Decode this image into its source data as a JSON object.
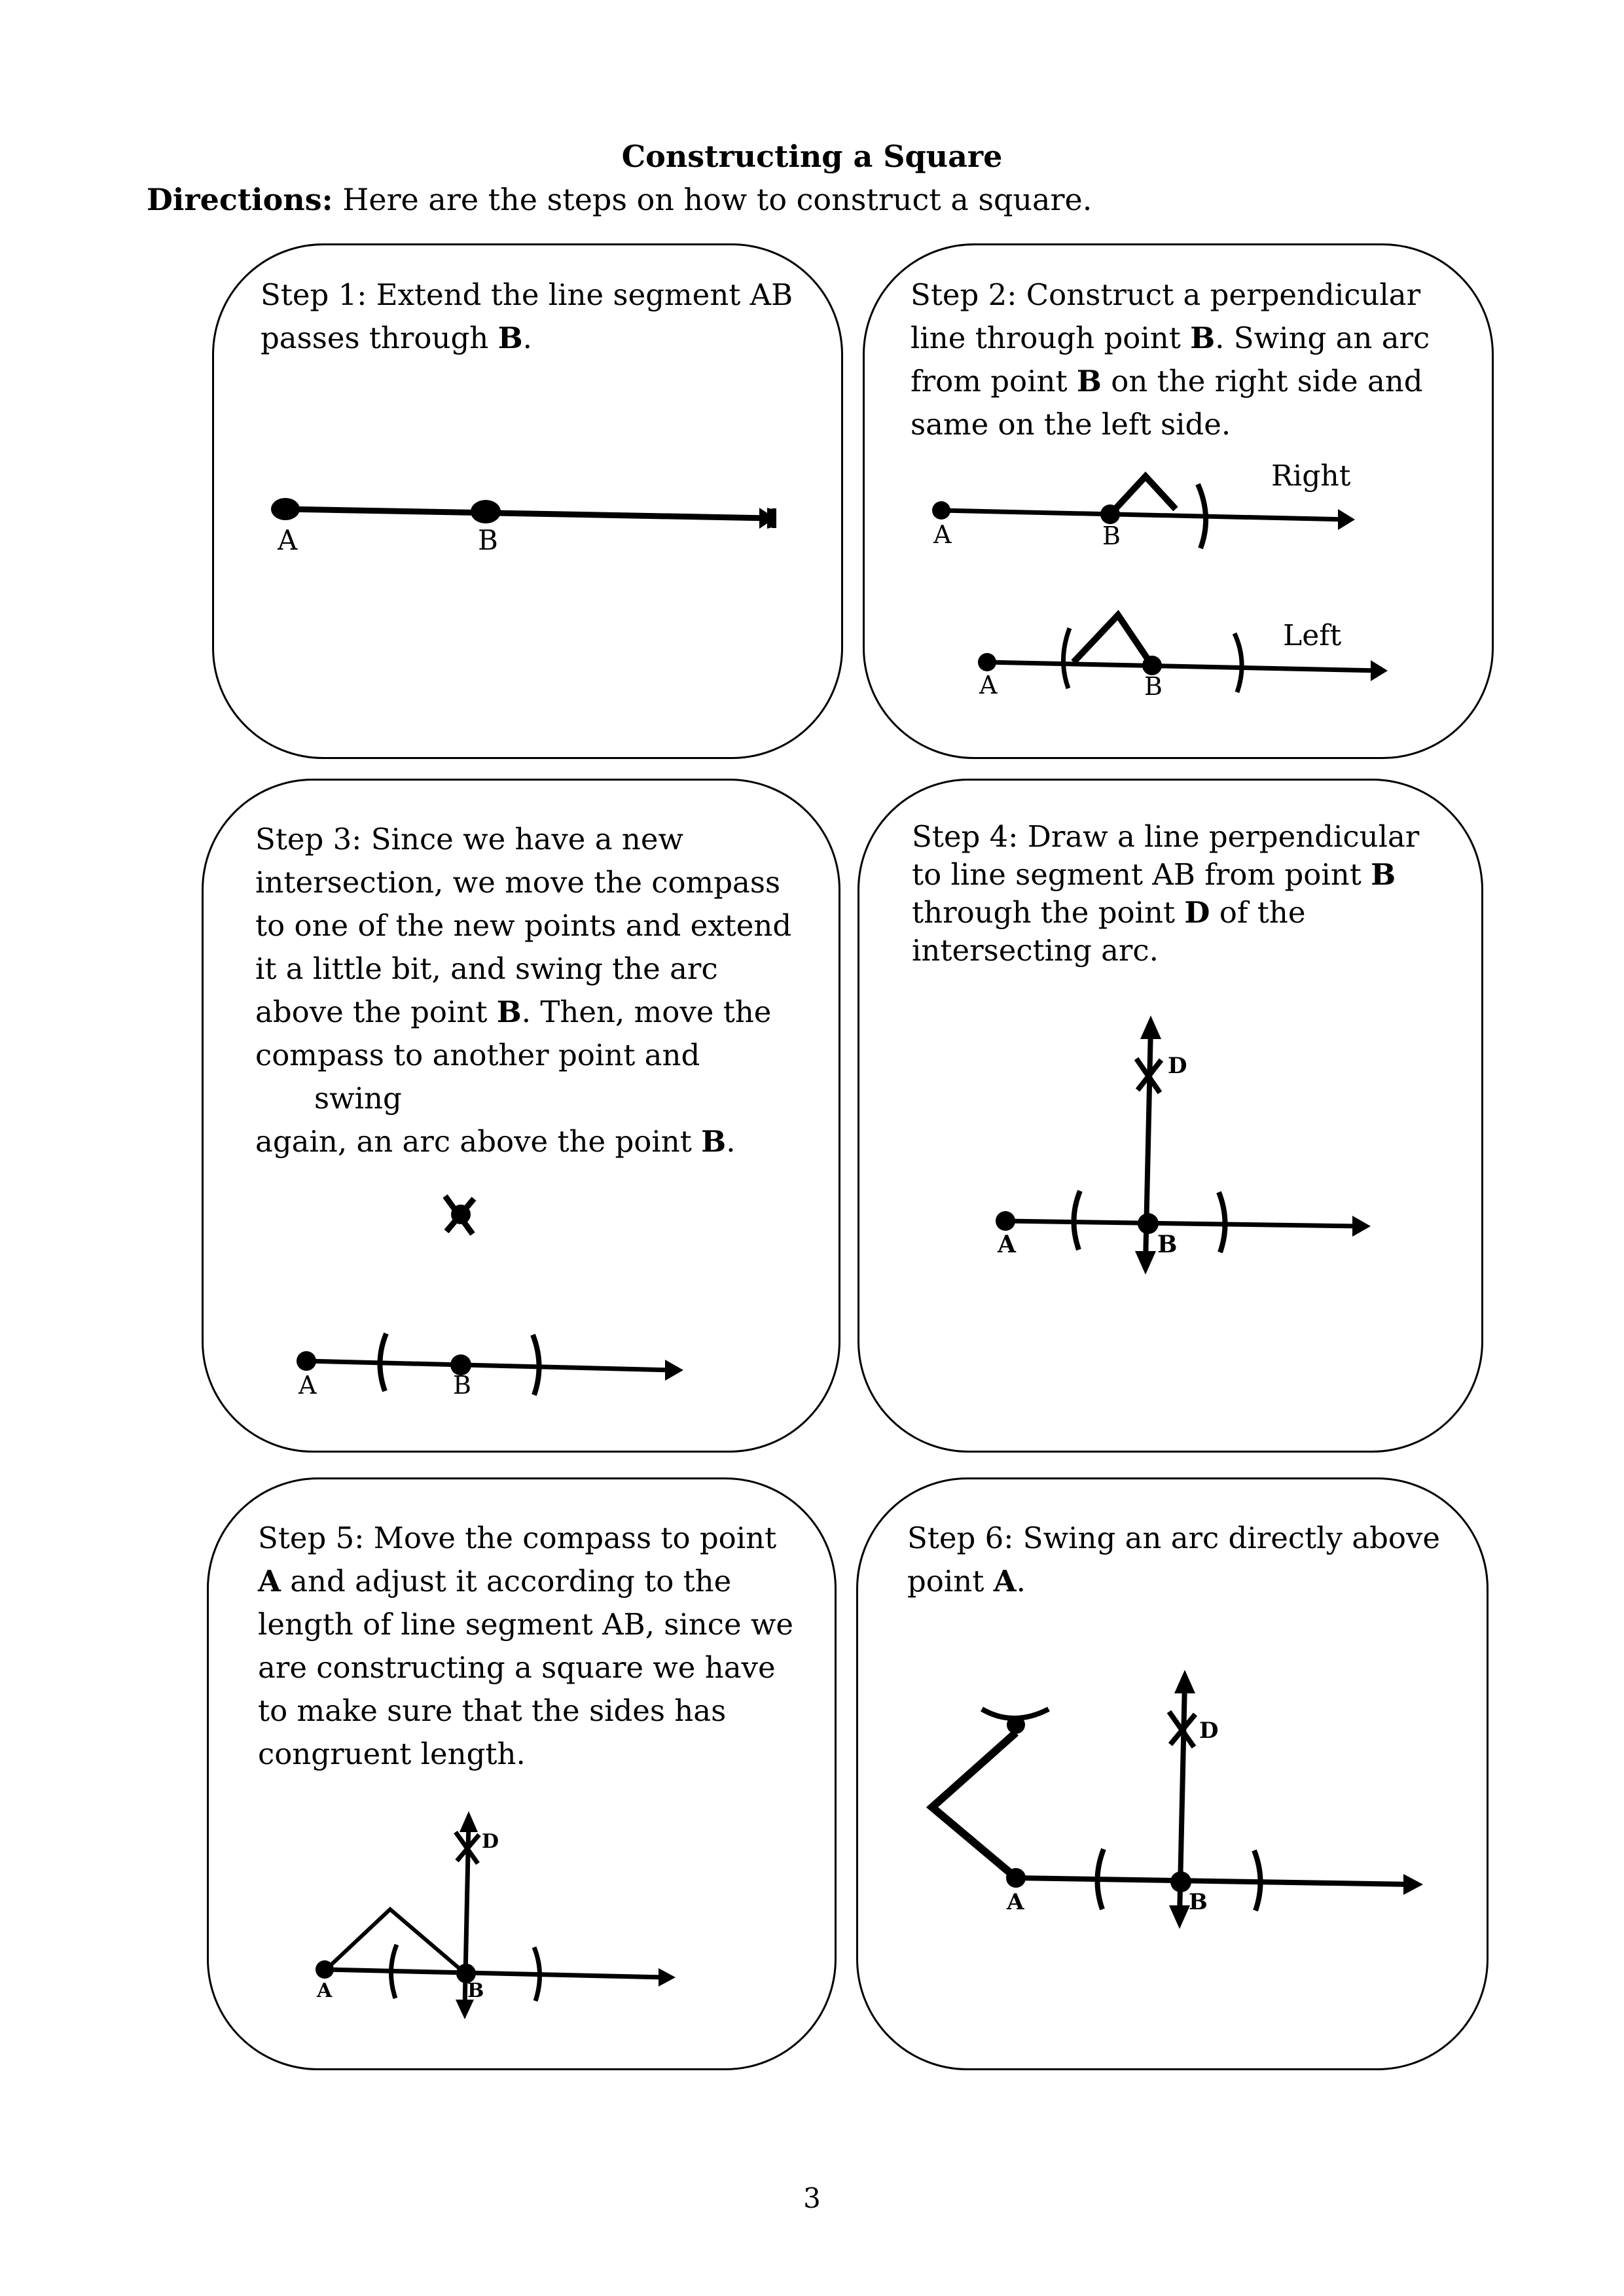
{
  "title": "Constructing a Square",
  "directions": {
    "label": "Directions:",
    "text": " Here are the steps on how to construct a square."
  },
  "steps": [
    {
      "lines": [
        [
          {
            "t": "Step 1: Extend the line segment AB"
          }
        ],
        [
          {
            "t": "passes through "
          },
          {
            "t": "B",
            "b": true
          },
          {
            "t": "."
          }
        ]
      ],
      "labels": {
        "a": "A",
        "b": "B"
      }
    },
    {
      "lines": [
        [
          {
            "t": "Step 2: Construct a perpendicular"
          }
        ],
        [
          {
            "t": "line through point "
          },
          {
            "t": "B",
            "b": true
          },
          {
            "t": ". Swing an arc"
          }
        ],
        [
          {
            "t": "from point "
          },
          {
            "t": "B",
            "b": true
          },
          {
            "t": " on the right side and"
          }
        ],
        [
          {
            "t": "same on the left side."
          }
        ]
      ],
      "labels": {
        "right": "Right",
        "left": "Left",
        "a1": "A",
        "b1": "B",
        "a2": "A",
        "b2": "B"
      }
    },
    {
      "lines": [
        [
          {
            "t": "Step 3: Since we have a new"
          }
        ],
        [
          {
            "t": "intersection, we move the compass"
          }
        ],
        [
          {
            "t": "to one of the new points and extend"
          }
        ],
        [
          {
            "t": "it a little bit, and swing the arc"
          }
        ],
        [
          {
            "t": "above the point "
          },
          {
            "t": "B",
            "b": true
          },
          {
            "t": ". Then, move the"
          }
        ],
        [
          {
            "t": "compass to another point and"
          }
        ],
        [
          {
            "t": "swing",
            "indent": true
          }
        ],
        [
          {
            "t": "again, an arc above the point "
          },
          {
            "t": "B",
            "b": true
          },
          {
            "t": "."
          }
        ]
      ],
      "labels": {
        "a": "A",
        "b": "B"
      }
    },
    {
      "lines": [
        [
          {
            "t": "Step 4: Draw a line perpendicular"
          }
        ],
        [
          {
            "t": "to line segment AB from point "
          },
          {
            "t": "B",
            "b": true
          }
        ],
        [
          {
            "t": "through the point "
          },
          {
            "t": "D",
            "b": true
          },
          {
            "t": " of the"
          }
        ],
        [
          {
            "t": "intersecting arc."
          }
        ]
      ],
      "labels": {
        "a": "A",
        "b": "B",
        "d": "D"
      }
    },
    {
      "lines": [
        [
          {
            "t": "Step 5: Move the compass to point"
          }
        ],
        [
          {
            "t": "A",
            "b": true
          },
          {
            "t": " and adjust it according to the"
          }
        ],
        [
          {
            "t": "length of line segment AB, since we"
          }
        ],
        [
          {
            "t": "are constructing a square we have"
          }
        ],
        [
          {
            "t": "to make sure that the sides has"
          }
        ],
        [
          {
            "t": "congruent length."
          }
        ]
      ],
      "labels": {
        "a": "A",
        "b": "B",
        "d": "D"
      }
    },
    {
      "lines": [
        [
          {
            "t": "Step 6: Swing an arc directly above"
          }
        ],
        [
          {
            "t": "point "
          },
          {
            "t": "A",
            "b": true
          },
          {
            "t": "."
          }
        ]
      ],
      "labels": {
        "a": "A",
        "b": "B",
        "d": "D"
      }
    }
  ],
  "page_number": "3"
}
